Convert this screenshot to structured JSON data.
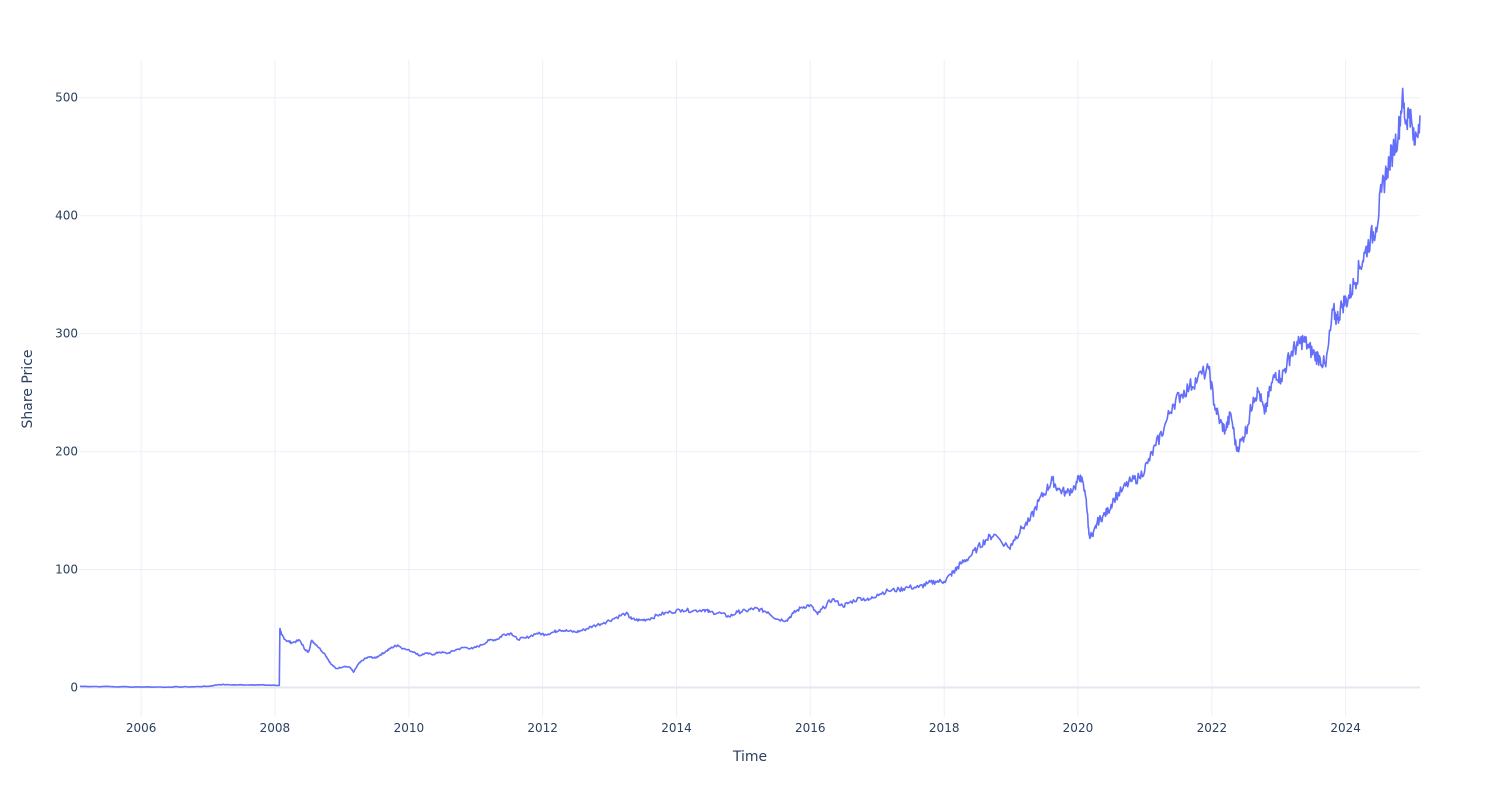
{
  "chart_data": {
    "type": "line",
    "title": "",
    "xlabel": "Time",
    "ylabel": "Share Price",
    "xlim": [
      "2005-02-01",
      "2025-02-10"
    ],
    "ylim": [
      -25,
      532
    ],
    "x_ticks": [
      "2006",
      "2008",
      "2010",
      "2012",
      "2014",
      "2016",
      "2018",
      "2020",
      "2022",
      "2024"
    ],
    "y_ticks": [
      0,
      100,
      200,
      300,
      400,
      500
    ],
    "grid": true,
    "legend": "none",
    "line_color": "#636efa",
    "series": [
      {
        "x": [
          "2005-02-01",
          "2005-06-01",
          "2005-12-01",
          "2006-06-01",
          "2006-10-01",
          "2007-01-01",
          "2007-03-01",
          "2007-06-01",
          "2007-09-01",
          "2007-12-01",
          "2008-01-25",
          "2008-01-28",
          "2008-02-05",
          "2008-03-01",
          "2008-04-01",
          "2008-05-15",
          "2008-06-15",
          "2008-07-01",
          "2008-07-20",
          "2008-08-15",
          "2008-10-01",
          "2008-11-01",
          "2008-12-01",
          "2009-01-15",
          "2009-02-15",
          "2009-03-05",
          "2009-04-01",
          "2009-05-01",
          "2009-06-01",
          "2009-07-01",
          "2009-08-01",
          "2009-09-01",
          "2009-10-01",
          "2009-11-01",
          "2009-12-01",
          "2010-02-01",
          "2010-03-01",
          "2010-04-01",
          "2010-05-15",
          "2010-06-15",
          "2010-08-01",
          "2010-09-15",
          "2010-11-01",
          "2010-12-15",
          "2011-02-01",
          "2011-03-15",
          "2011-05-01",
          "2011-06-01",
          "2011-07-15",
          "2011-08-15",
          "2011-10-01",
          "2011-12-01",
          "2012-01-15",
          "2012-03-01",
          "2012-04-01",
          "2012-05-15",
          "2012-07-01",
          "2012-08-15",
          "2012-10-01",
          "2012-12-01",
          "2013-02-01",
          "2013-04-01",
          "2013-05-01",
          "2013-06-15",
          "2013-08-01",
          "2013-10-01",
          "2013-12-01",
          "2014-02-01",
          "2014-04-01",
          "2014-06-01",
          "2014-07-01",
          "2014-09-01",
          "2014-10-15",
          "2014-12-01",
          "2015-01-15",
          "2015-03-01",
          "2015-04-01",
          "2015-05-15",
          "2015-07-01",
          "2015-08-25",
          "2015-10-01",
          "2015-11-15",
          "2016-01-01",
          "2016-02-10",
          "2016-03-15",
          "2016-05-01",
          "2016-06-27",
          "2016-08-01",
          "2016-10-01",
          "2016-11-15",
          "2017-01-01",
          "2017-03-01",
          "2017-05-01",
          "2017-06-15",
          "2017-08-15",
          "2017-10-01",
          "2017-11-15",
          "2018-01-01",
          "2018-02-08",
          "2018-03-01",
          "2018-04-01",
          "2018-05-15",
          "2018-07-01",
          "2018-08-15",
          "2018-10-01",
          "2018-12-24",
          "2019-01-15",
          "2019-03-01",
          "2019-04-15",
          "2019-06-01",
          "2019-07-15",
          "2019-08-15",
          "2019-09-15",
          "2019-11-01",
          "2019-12-15",
          "2020-01-15",
          "2020-02-15",
          "2020-03-01",
          "2020-03-23",
          "2020-04-15",
          "2020-05-15",
          "2020-06-15",
          "2020-07-15",
          "2020-09-01",
          "2020-10-15",
          "2020-12-01",
          "2021-01-15",
          "2021-03-01",
          "2021-04-15",
          "2021-06-01",
          "2021-07-15",
          "2021-09-01",
          "2021-10-15",
          "2021-12-15",
          "2022-01-15",
          "2022-02-15",
          "2022-03-15",
          "2022-04-15",
          "2022-05-15",
          "2022-06-15",
          "2022-07-15",
          "2022-08-15",
          "2022-09-15",
          "2022-10-15",
          "2022-11-15",
          "2022-12-15",
          "2023-01-15",
          "2023-02-15",
          "2023-03-15",
          "2023-04-15",
          "2023-05-15",
          "2023-06-15",
          "2023-07-15",
          "2023-08-15",
          "2023-09-15",
          "2023-10-25",
          "2023-11-15",
          "2023-12-15",
          "2024-01-15",
          "2024-02-15",
          "2024-03-15",
          "2024-04-15",
          "2024-05-15",
          "2024-06-15",
          "2024-07-15",
          "2024-08-15",
          "2024-09-15",
          "2024-10-15",
          "2024-11-05",
          "2024-11-25",
          "2024-12-15",
          "2025-01-10",
          "2025-02-10"
        ],
        "y": [
          1,
          0.8,
          0.5,
          0.4,
          0.6,
          1,
          2.5,
          2.2,
          2.3,
          2,
          1.8,
          50,
          45,
          40,
          38,
          40,
          32,
          30,
          40,
          36,
          28,
          20,
          16,
          18,
          17,
          13,
          20,
          24,
          26,
          25,
          28,
          31,
          34,
          36,
          33,
          30,
          27,
          29,
          28,
          30,
          29,
          32,
          34,
          33,
          36,
          40,
          41,
          45,
          46,
          41,
          42,
          46,
          45,
          47,
          49,
          48,
          47,
          49,
          52,
          55,
          59,
          63,
          58,
          57,
          58,
          62,
          64,
          66,
          65,
          66,
          64,
          63,
          60,
          64,
          65,
          67,
          66,
          64,
          58,
          57,
          63,
          68,
          70,
          62,
          68,
          75,
          69,
          72,
          76,
          74,
          79,
          82,
          83,
          85,
          85,
          88,
          90,
          90,
          96,
          99,
          105,
          110,
          118,
          125,
          130,
          118,
          125,
          135,
          142,
          158,
          168,
          176,
          168,
          165,
          170,
          180,
          160,
          130,
          128,
          140,
          145,
          150,
          160,
          168,
          175,
          178,
          190,
          205,
          220,
          240,
          248,
          255,
          262,
          270,
          240,
          225,
          218,
          232,
          202,
          210,
          222,
          246,
          251,
          232,
          252,
          267,
          262,
          275,
          285,
          290,
          295,
          288,
          282,
          279,
          272,
          320,
          312,
          325,
          330,
          342,
          355,
          368,
          380,
          390,
          420,
          440,
          455,
          470,
          500,
          480,
          490,
          460,
          485
        ]
      }
    ]
  }
}
